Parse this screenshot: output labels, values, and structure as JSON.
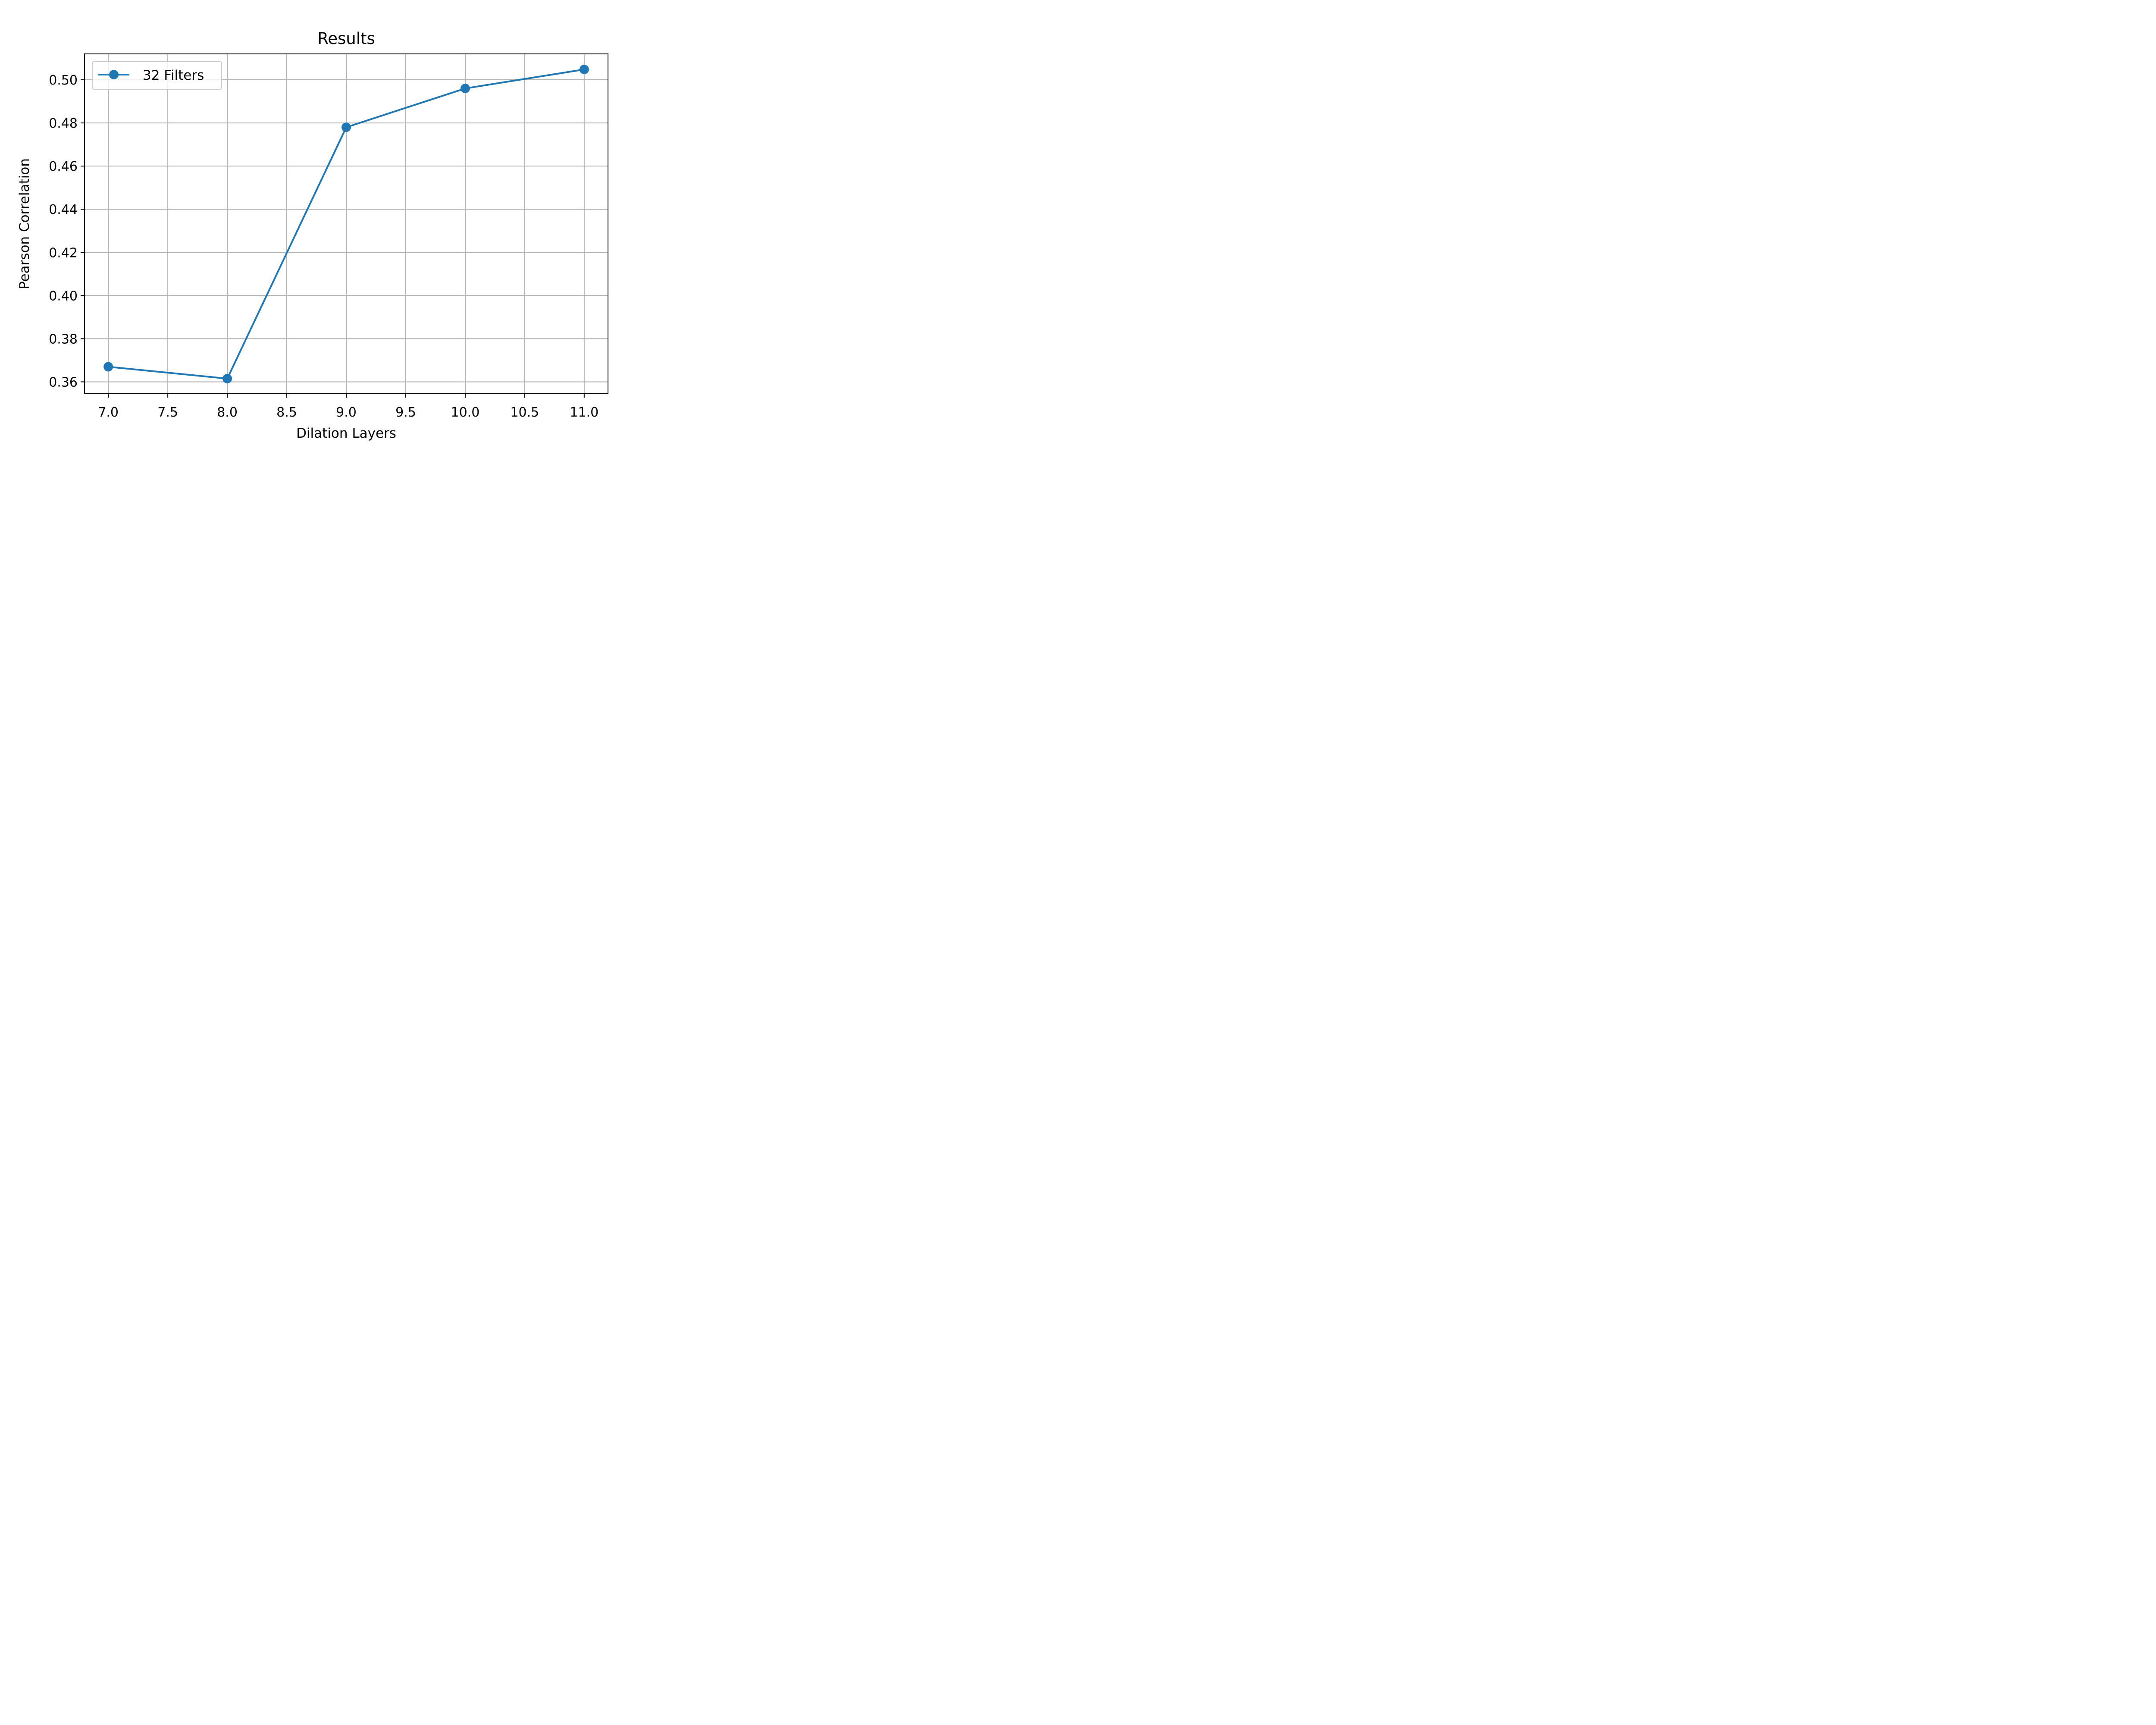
{
  "chart_data": {
    "type": "line",
    "title": "Results",
    "xlabel": "Dilation Layers",
    "ylabel": "Pearson Correlation",
    "xlim": [
      6.8,
      11.2
    ],
    "ylim": [
      0.3545,
      0.512
    ],
    "xticks": [
      7.0,
      7.5,
      8.0,
      8.5,
      9.0,
      9.5,
      10.0,
      10.5,
      11.0
    ],
    "xtick_labels": [
      "7.0",
      "7.5",
      "8.0",
      "8.5",
      "9.0",
      "9.5",
      "10.0",
      "10.5",
      "11.0"
    ],
    "yticks": [
      0.36,
      0.38,
      0.4,
      0.42,
      0.44,
      0.46,
      0.48,
      0.5
    ],
    "ytick_labels": [
      "0.36",
      "0.38",
      "0.40",
      "0.42",
      "0.44",
      "0.46",
      "0.48",
      "0.50"
    ],
    "grid": true,
    "legend_position": "top-left",
    "series": [
      {
        "name": "32 Filters",
        "color": "#1f77b4",
        "marker": "circle",
        "x": [
          7,
          8,
          9,
          10,
          11
        ],
        "y": [
          0.367,
          0.3615,
          0.478,
          0.496,
          0.5048
        ]
      }
    ]
  }
}
